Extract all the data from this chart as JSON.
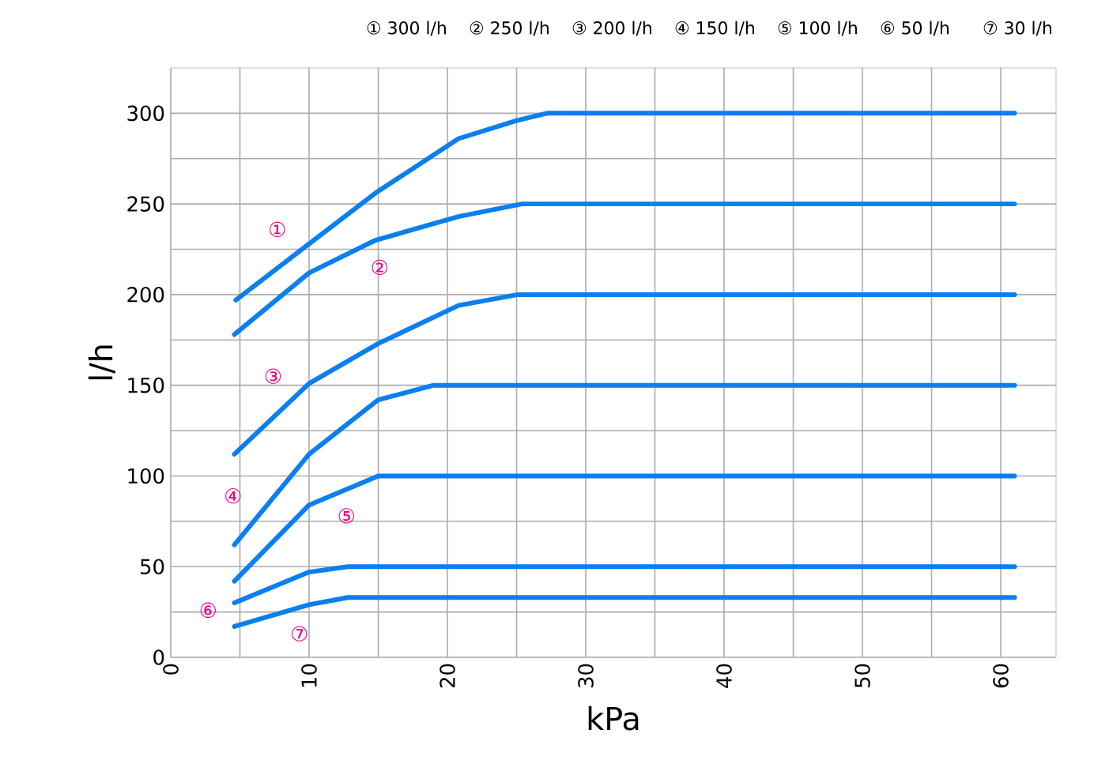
{
  "chart_data": {
    "type": "line",
    "xlabel": "kPa",
    "ylabel": "l/h",
    "xlim": [
      0,
      64
    ],
    "ylim": [
      0,
      325
    ],
    "xticks": [
      0,
      {
        "value": 5,
        "label": null
      },
      10,
      {
        "value": 15,
        "label": null
      },
      20,
      {
        "value": 25,
        "label": null
      },
      30,
      {
        "value": 35,
        "label": null
      },
      40,
      {
        "value": 45,
        "label": null
      },
      50,
      {
        "value": 55,
        "label": null
      },
      60
    ],
    "yticks": [
      0,
      {
        "value": 25,
        "label": null
      },
      50,
      {
        "value": 75,
        "label": null
      },
      100,
      {
        "value": 125,
        "label": null
      },
      150,
      {
        "value": 175,
        "label": null
      },
      200,
      {
        "value": 225,
        "label": null
      },
      250,
      {
        "value": 275,
        "label": null
      },
      300
    ],
    "grid": true,
    "marker": "none",
    "line_style": "solid",
    "series": [
      {
        "name": "①",
        "color": "#0a7ff0",
        "x": [
          4.7,
          10,
          14.8,
          20.8,
          25,
          27.2,
          61
        ],
        "values": [
          197,
          228,
          256,
          286,
          296,
          300,
          300
        ]
      },
      {
        "name": "②",
        "color": "#0a7ff0",
        "x": [
          4.6,
          10,
          14.8,
          20.8,
          25.4,
          61
        ],
        "values": [
          178,
          212,
          230,
          243,
          250,
          250
        ]
      },
      {
        "name": "③",
        "color": "#0a7ff0",
        "x": [
          4.6,
          10,
          15,
          20.8,
          25.1,
          61
        ],
        "values": [
          112,
          151,
          173,
          194,
          200,
          200
        ]
      },
      {
        "name": "④",
        "color": "#0a7ff0",
        "x": [
          4.6,
          10,
          15,
          19,
          61
        ],
        "values": [
          62,
          112,
          142,
          150,
          150
        ]
      },
      {
        "name": "⑤",
        "color": "#0a7ff0",
        "x": [
          4.6,
          10,
          15,
          61
        ],
        "values": [
          42,
          84,
          100,
          100
        ]
      },
      {
        "name": "⑥",
        "color": "#0a7ff0",
        "x": [
          4.6,
          10,
          12.8,
          61
        ],
        "values": [
          30,
          47,
          50,
          50
        ]
      },
      {
        "name": "⑦",
        "color": "#0a7ff0",
        "x": [
          4.6,
          10,
          12.8,
          61
        ],
        "values": [
          17,
          29,
          33,
          33
        ]
      }
    ],
    "annotations": [
      "① 300 l/h",
      "② 250 l/h",
      "③ 200 l/h",
      "④ 150 l/h",
      "⑤ 100 l/h",
      "⑥ 50 l/h",
      "⑦ 30 l/h"
    ]
  }
}
